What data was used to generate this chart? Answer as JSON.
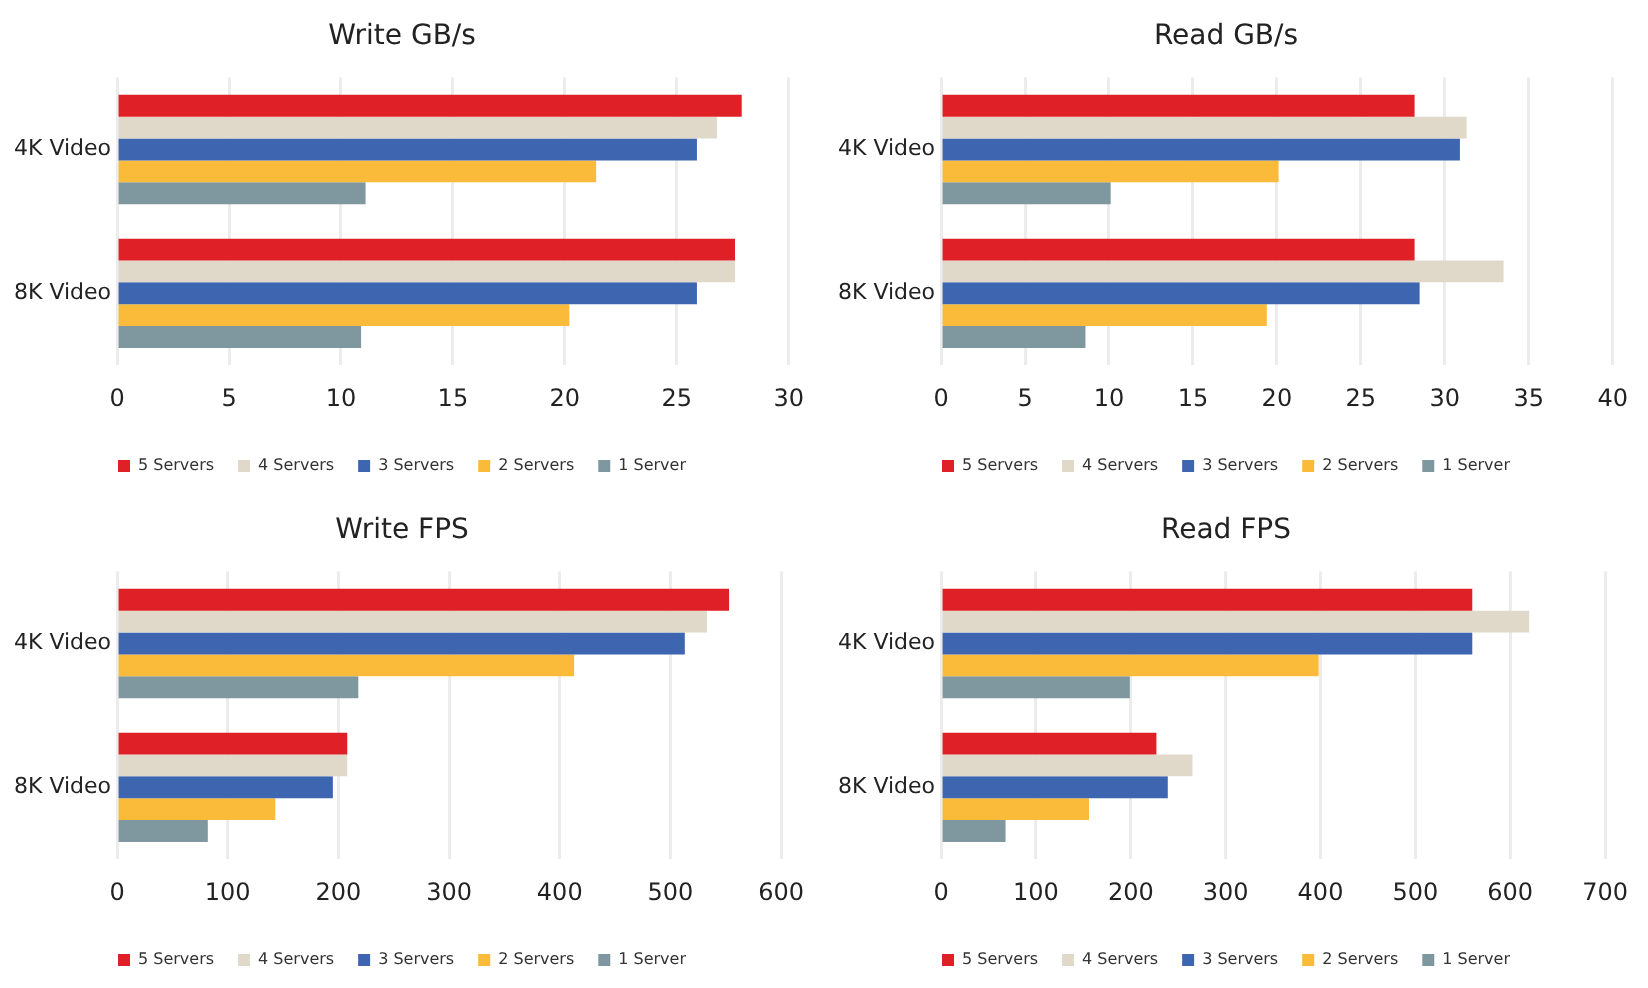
{
  "chart_data": [
    {
      "type": "bar",
      "orientation": "horizontal",
      "title": "Write GB/s",
      "categories": [
        "4K Video",
        "8K Video"
      ],
      "xlim": [
        0,
        30
      ],
      "xticks": [
        0,
        5,
        10,
        15,
        20,
        25,
        30
      ],
      "grid": "x",
      "legend": "bottom",
      "series": [
        {
          "name": "5 Servers",
          "color": "#e02027",
          "values": [
            27.9,
            27.6
          ]
        },
        {
          "name": "4 Servers",
          "color": "#e0d9c9",
          "values": [
            26.8,
            27.6
          ]
        },
        {
          "name": "3 Servers",
          "color": "#3d65b0",
          "values": [
            25.9,
            25.9
          ]
        },
        {
          "name": "2 Servers",
          "color": "#fbbb3a",
          "values": [
            21.4,
            20.2
          ]
        },
        {
          "name": "1 Server",
          "color": "#7f98a0",
          "values": [
            11.1,
            10.9
          ]
        }
      ]
    },
    {
      "type": "bar",
      "orientation": "horizontal",
      "title": "Read GB/s",
      "categories": [
        "4K Video",
        "8K Video"
      ],
      "xlim": [
        0,
        40
      ],
      "xticks": [
        0,
        5,
        10,
        15,
        20,
        25,
        30,
        35,
        40
      ],
      "grid": "x",
      "legend": "bottom",
      "series": [
        {
          "name": "5 Servers",
          "color": "#e02027",
          "values": [
            28.2,
            28.2
          ]
        },
        {
          "name": "4 Servers",
          "color": "#e0d9c9",
          "values": [
            31.3,
            33.5
          ]
        },
        {
          "name": "3 Servers",
          "color": "#3d65b0",
          "values": [
            30.9,
            28.5
          ]
        },
        {
          "name": "2 Servers",
          "color": "#fbbb3a",
          "values": [
            20.1,
            19.4
          ]
        },
        {
          "name": "1 Server",
          "color": "#7f98a0",
          "values": [
            10.1,
            8.6
          ]
        }
      ]
    },
    {
      "type": "bar",
      "orientation": "horizontal",
      "title": "Write FPS",
      "categories": [
        "4K Video",
        "8K Video"
      ],
      "xlim": [
        0,
        600
      ],
      "xticks": [
        0,
        100,
        200,
        300,
        400,
        500,
        600
      ],
      "grid": "x",
      "legend": "bottom",
      "series": [
        {
          "name": "5 Servers",
          "color": "#e02027",
          "values": [
            553,
            208
          ]
        },
        {
          "name": "4 Servers",
          "color": "#e0d9c9",
          "values": [
            533,
            208
          ]
        },
        {
          "name": "3 Servers",
          "color": "#3d65b0",
          "values": [
            513,
            195
          ]
        },
        {
          "name": "2 Servers",
          "color": "#fbbb3a",
          "values": [
            413,
            143
          ]
        },
        {
          "name": "1 Server",
          "color": "#7f98a0",
          "values": [
            218,
            82
          ]
        }
      ]
    },
    {
      "type": "bar",
      "orientation": "horizontal",
      "title": "Read FPS",
      "categories": [
        "4K Video",
        "8K Video"
      ],
      "xlim": [
        0,
        700
      ],
      "xticks": [
        0,
        100,
        200,
        300,
        400,
        500,
        600,
        700
      ],
      "grid": "x",
      "legend": "bottom",
      "series": [
        {
          "name": "5 Servers",
          "color": "#e02027",
          "values": [
            560,
            227
          ]
        },
        {
          "name": "4 Servers",
          "color": "#e0d9c9",
          "values": [
            620,
            265
          ]
        },
        {
          "name": "3 Servers",
          "color": "#3d65b0",
          "values": [
            560,
            239
          ]
        },
        {
          "name": "2 Servers",
          "color": "#fbbb3a",
          "values": [
            398,
            156
          ]
        },
        {
          "name": "1 Server",
          "color": "#7f98a0",
          "values": [
            199,
            68
          ]
        }
      ]
    }
  ]
}
